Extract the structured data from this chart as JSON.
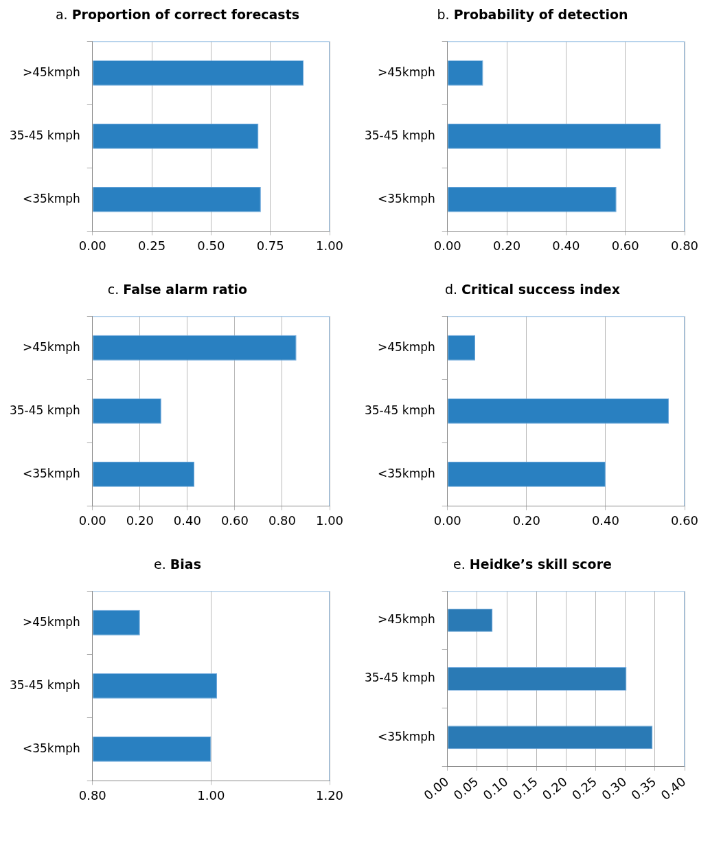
{
  "chart_data": [
    {
      "type": "bar",
      "orientation": "horizontal",
      "title": "a. Proportion of correct forecasts",
      "categories": [
        ">45kmph",
        "35-45 kmph",
        "<35kmph"
      ],
      "values": [
        0.89,
        0.7,
        0.71
      ],
      "color": "#2980c1",
      "xlim": [
        0,
        1
      ],
      "xticks": [
        {
          "value": 0,
          "label": "0.00"
        },
        {
          "value": 0.25,
          "label": "0.25"
        },
        {
          "value": 0.5,
          "label": "0.50"
        },
        {
          "value": 0.75,
          "label": "0.75"
        },
        {
          "value": 1,
          "label": "1.00"
        }
      ],
      "grid": "x"
    },
    {
      "type": "bar",
      "orientation": "horizontal",
      "title": "b. Probability of detection",
      "categories": [
        ">45kmph",
        "35-45 kmph",
        "<35kmph"
      ],
      "values": [
        0.12,
        0.72,
        0.57
      ],
      "color": "#2980c1",
      "xlim": [
        0,
        0.8
      ],
      "xticks": [
        {
          "value": 0,
          "label": "0.00"
        },
        {
          "value": 0.2,
          "label": "0.20"
        },
        {
          "value": 0.4,
          "label": "0.40"
        },
        {
          "value": 0.6,
          "label": "0.60"
        },
        {
          "value": 0.8,
          "label": "0.80"
        }
      ],
      "grid": "x"
    },
    {
      "type": "bar",
      "orientation": "horizontal",
      "title": "c. False alarm ratio",
      "categories": [
        ">45kmph",
        "35-45 kmph",
        "<35kmph"
      ],
      "values": [
        0.86,
        0.29,
        0.43
      ],
      "color": "#2980c1",
      "xlim": [
        0,
        1
      ],
      "xticks": [
        {
          "value": 0,
          "label": "0.00"
        },
        {
          "value": 0.2,
          "label": "0.20"
        },
        {
          "value": 0.4,
          "label": "0.40"
        },
        {
          "value": 0.6,
          "label": "0.60"
        },
        {
          "value": 0.8,
          "label": "0.80"
        },
        {
          "value": 1,
          "label": "1.00"
        }
      ],
      "grid": "x"
    },
    {
      "type": "bar",
      "orientation": "horizontal",
      "title": "d. Critical success index",
      "categories": [
        ">45kmph",
        "35-45 kmph",
        "<35kmph"
      ],
      "values": [
        0.07,
        0.56,
        0.4
      ],
      "color": "#2980c1",
      "xlim": [
        0,
        0.6
      ],
      "xticks": [
        {
          "value": 0,
          "label": "0.00"
        },
        {
          "value": 0.2,
          "label": "0.20"
        },
        {
          "value": 0.4,
          "label": "0.40"
        },
        {
          "value": 0.6,
          "label": "0.60"
        }
      ],
      "grid": "x"
    },
    {
      "type": "bar",
      "orientation": "horizontal",
      "title": "e. Bias",
      "categories": [
        ">45kmph",
        "35-45 kmph",
        "<35kmph"
      ],
      "values": [
        0.88,
        1.01,
        1.0
      ],
      "color": "#2980c1",
      "xlim": [
        0.8,
        1.2
      ],
      "xticks": [
        {
          "value": 0.8,
          "label": "0.80"
        },
        {
          "value": 1,
          "label": "1.00"
        },
        {
          "value": 1.2,
          "label": "1.20"
        }
      ],
      "grid": "x"
    },
    {
      "type": "bar",
      "orientation": "horizontal",
      "title": "e. Heidke’s skill score",
      "categories": [
        ">45kmph",
        "35-45 kmph",
        "<35kmph"
      ],
      "values": [
        0.076,
        0.302,
        0.346
      ],
      "color": "#2a7ab5",
      "xlim": [
        0,
        0.4
      ],
      "xticks": [
        {
          "value": 0,
          "label": "0.00"
        },
        {
          "value": 0.05,
          "label": "0.05"
        },
        {
          "value": 0.1,
          "label": "0.10"
        },
        {
          "value": 0.15,
          "label": "0.15"
        },
        {
          "value": 0.2,
          "label": "0.20"
        },
        {
          "value": 0.25,
          "label": "0.25"
        },
        {
          "value": 0.3,
          "label": "0.30"
        },
        {
          "value": 0.35,
          "label": "0.35"
        },
        {
          "value": 0.4,
          "label": "0.40"
        }
      ],
      "grid": "x"
    }
  ]
}
